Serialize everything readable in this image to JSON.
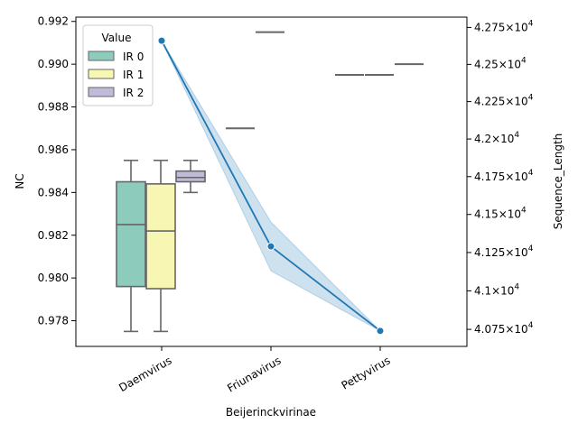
{
  "chart_data": {
    "type": "box",
    "xlabel": "Beijerinckvirinae",
    "ylabel_left": "NC",
    "ylabel_right": "Sequence_Length",
    "categories": [
      "Daemvirus",
      "Friunavirus",
      "Pettyvirus"
    ],
    "left_axis": {
      "ylim": [
        0.9768,
        0.9922
      ],
      "ticks": [
        0.978,
        0.98,
        0.982,
        0.984,
        0.986,
        0.988,
        0.99,
        0.992
      ],
      "tick_labels": [
        "0.978",
        "0.980",
        "0.982",
        "0.984",
        "0.986",
        "0.988",
        "0.990",
        "0.992"
      ]
    },
    "right_axis": {
      "ylim": [
        40640,
        42820
      ],
      "ticks": [
        40750,
        41000,
        41250,
        41500,
        41750,
        42000,
        42250,
        42500,
        42750
      ],
      "tick_labels": [
        {
          "mantissa": "4.075",
          "exponent": "4"
        },
        {
          "mantissa": "4.1",
          "exponent": "4"
        },
        {
          "mantissa": "4.125",
          "exponent": "4"
        },
        {
          "mantissa": "4.15",
          "exponent": "4"
        },
        {
          "mantissa": "4.175",
          "exponent": "4"
        },
        {
          "mantissa": "4.2",
          "exponent": "4"
        },
        {
          "mantissa": "4.225",
          "exponent": "4"
        },
        {
          "mantissa": "4.25",
          "exponent": "4"
        },
        {
          "mantissa": "4.275",
          "exponent": "4"
        }
      ]
    },
    "legend": {
      "title": "Value",
      "position": "top-left",
      "entries": [
        "IR 0",
        "IR 1",
        "IR 2"
      ]
    },
    "box_series": [
      {
        "name": "IR 0",
        "color": "#8dcbbd",
        "boxes": [
          {
            "category": "Daemvirus",
            "whislo": 0.9775,
            "q1": 0.9796,
            "med": 0.9825,
            "q3": 0.9845,
            "whishi": 0.9855
          },
          {
            "category": "Friunavirus",
            "whislo": 0.987,
            "q1": 0.987,
            "med": 0.987,
            "q3": 0.987,
            "whishi": 0.987
          },
          {
            "category": "Pettyvirus",
            "whislo": 0.9895,
            "q1": 0.9895,
            "med": 0.9895,
            "q3": 0.9895,
            "whishi": 0.9895
          }
        ]
      },
      {
        "name": "IR 1",
        "color": "#f8f6b3",
        "boxes": [
          {
            "category": "Daemvirus",
            "whislo": 0.9775,
            "q1": 0.9795,
            "med": 0.9822,
            "q3": 0.9844,
            "whishi": 0.9855
          },
          {
            "category": "Friunavirus",
            "whislo": 0.9915,
            "q1": 0.9915,
            "med": 0.9915,
            "q3": 0.9915,
            "whishi": 0.9915
          },
          {
            "category": "Pettyvirus",
            "whislo": 0.9895,
            "q1": 0.9895,
            "med": 0.9895,
            "q3": 0.9895,
            "whishi": 0.9895
          }
        ]
      },
      {
        "name": "IR 2",
        "color": "#bfbbd9",
        "boxes": [
          {
            "category": "Daemvirus",
            "whislo": 0.984,
            "q1": 0.9845,
            "med": 0.9847,
            "q3": 0.985,
            "whishi": 0.9855
          },
          {
            "category": "Pettyvirus",
            "whislo": 0.99,
            "q1": 0.99,
            "med": 0.99,
            "q3": 0.99,
            "whishi": 0.99
          }
        ]
      }
    ],
    "line_series": {
      "axis": "right",
      "color": "#1f77b4",
      "band_color": "#1f77b4",
      "points": [
        {
          "category": "Daemvirus",
          "y": 42660,
          "lo": 42660,
          "hi": 42660
        },
        {
          "category": "Friunavirus",
          "y": 41290,
          "lo": 41130,
          "hi": 41450
        },
        {
          "category": "Pettyvirus",
          "y": 40740,
          "lo": 40740,
          "hi": 40740
        }
      ]
    }
  }
}
